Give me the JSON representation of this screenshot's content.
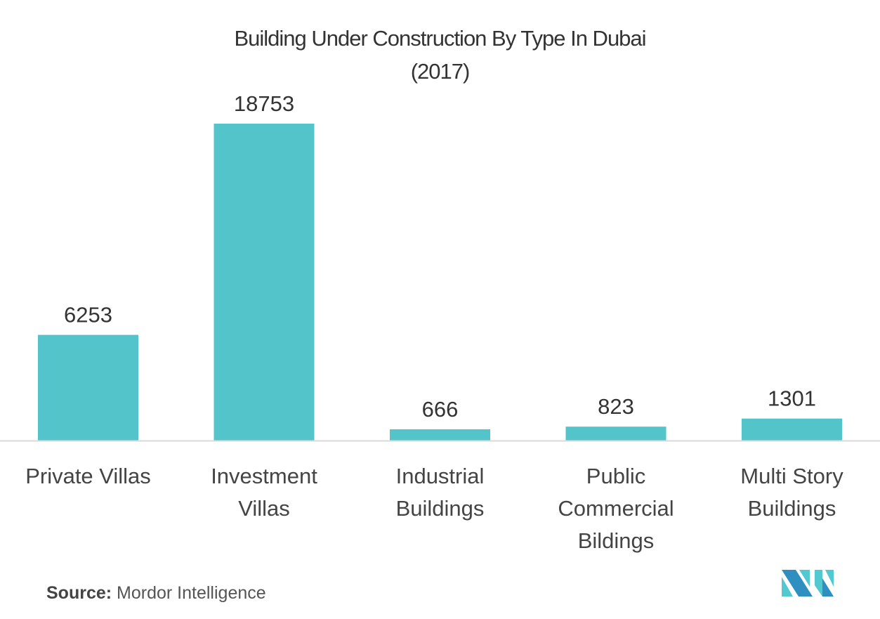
{
  "chart_data": {
    "type": "bar",
    "title": "Building Under Construction By Type In Dubai",
    "subtitle": "(2017)",
    "categories": [
      [
        "Private Villas"
      ],
      [
        "Investment",
        "Villas"
      ],
      [
        "Industrial",
        "Buildings"
      ],
      [
        "Public",
        "Commercial",
        "Bildings"
      ],
      [
        "Multi Story",
        "Buildings"
      ]
    ],
    "values": [
      6253,
      18753,
      666,
      823,
      1301
    ],
    "value_labels": [
      "6253",
      "18753",
      "666",
      "823",
      "1301"
    ],
    "xlabel": "",
    "ylabel": "",
    "ylim": [
      0,
      18753
    ],
    "grid": false,
    "legend": "none",
    "colors": {
      "bar": "#52c4ca",
      "axis": "#d9d9d9",
      "logo_dark": "#2e8fc0",
      "logo_light": "#52c8d0"
    }
  },
  "source": {
    "label": "Source:",
    "text": "Mordor Intelligence"
  },
  "logo": {
    "name": "mordor-intelligence-logo"
  }
}
